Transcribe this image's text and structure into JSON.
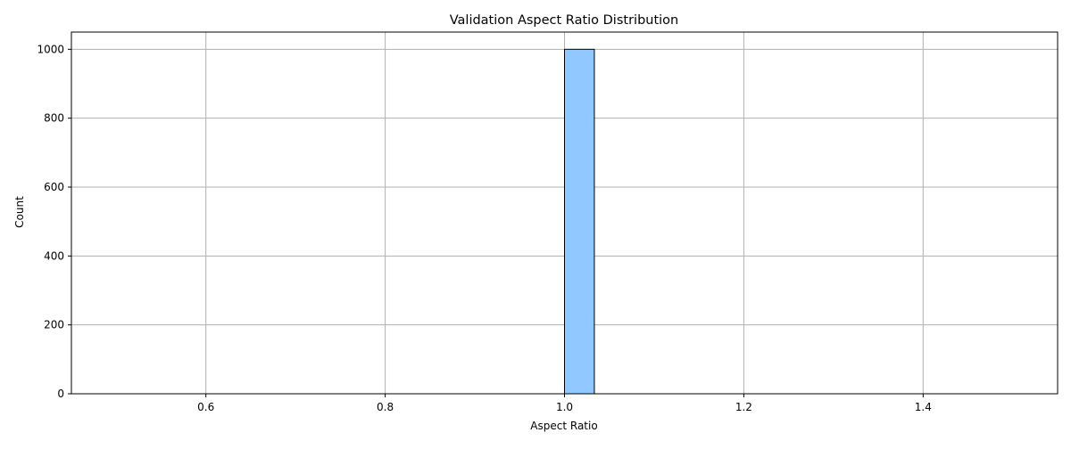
{
  "chart_data": {
    "type": "bar",
    "title": "Validation Aspect Ratio Distribution",
    "xlabel": "Aspect Ratio",
    "ylabel": "Count",
    "xlim": [
      0.45,
      1.55
    ],
    "ylim": [
      0,
      1050
    ],
    "xticks": [
      0.6,
      0.8,
      1.0,
      1.2,
      1.4
    ],
    "yticks": [
      0,
      200,
      400,
      600,
      800,
      1000
    ],
    "xtick_labels": [
      "0.6",
      "0.8",
      "1.0",
      "1.2",
      "1.4"
    ],
    "ytick_labels": [
      "0",
      "200",
      "400",
      "600",
      "800",
      "1000"
    ],
    "grid": true,
    "bins": [
      {
        "x0": 1.0,
        "x1": 1.0333,
        "count": 1000
      }
    ],
    "data_range": [
      0.5,
      1.5
    ],
    "bar_color": "#90c8ff",
    "edge_color": "#000000",
    "grid_color": "#b0b0b0"
  }
}
